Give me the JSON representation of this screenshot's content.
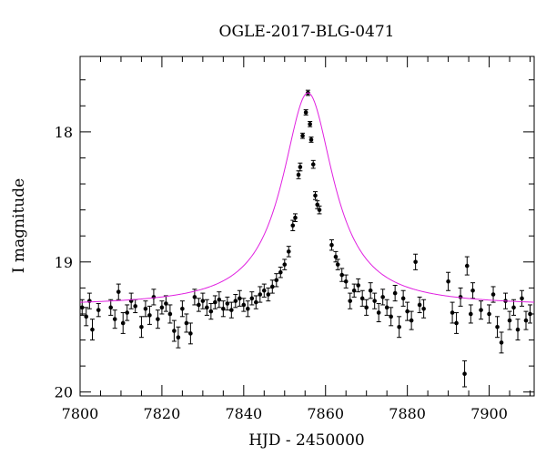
{
  "chart_data": {
    "type": "scatter",
    "title": "OGLE-2017-BLG-0471",
    "xlabel": "HJD - 2450000",
    "ylabel": "I magnitude",
    "xlim": [
      7800,
      7911
    ],
    "ylim": [
      20.03,
      17.42
    ],
    "y_inverted": true,
    "grid": false,
    "x_ticks": [
      {
        "value": 7800,
        "label": "7800"
      },
      {
        "value": 7820,
        "label": "7820"
      },
      {
        "value": 7840,
        "label": "7840"
      },
      {
        "value": 7860,
        "label": "7860"
      },
      {
        "value": 7880,
        "label": "7880"
      },
      {
        "value": 7900,
        "label": "7900"
      }
    ],
    "y_ticks": [
      {
        "value": 18,
        "label": "18"
      },
      {
        "value": 19,
        "label": "19"
      },
      {
        "value": 20,
        "label": "20"
      }
    ],
    "model": {
      "type": "point-lens microlensing fit",
      "t0": 7855.7,
      "baseline": 19.34,
      "peak": 17.7,
      "wing_width": 7.6,
      "color": "#e020e0"
    },
    "series": [
      {
        "marker_color": "#000000",
        "points": [
          {
            "x": 7800.5,
            "y": 19.35,
            "e": 0.06
          },
          {
            "x": 7801.5,
            "y": 19.42,
            "e": 0.07
          },
          {
            "x": 7802.3,
            "y": 19.3,
            "e": 0.06
          },
          {
            "x": 7803.0,
            "y": 19.52,
            "e": 0.08
          },
          {
            "x": 7804.5,
            "y": 19.37,
            "e": 0.05
          },
          {
            "x": 7807.5,
            "y": 19.35,
            "e": 0.06
          },
          {
            "x": 7808.5,
            "y": 19.44,
            "e": 0.07
          },
          {
            "x": 7809.4,
            "y": 19.23,
            "e": 0.06
          },
          {
            "x": 7810.5,
            "y": 19.47,
            "e": 0.08
          },
          {
            "x": 7811.5,
            "y": 19.39,
            "e": 0.06
          },
          {
            "x": 7812.5,
            "y": 19.3,
            "e": 0.06
          },
          {
            "x": 7813.5,
            "y": 19.34,
            "e": 0.05
          },
          {
            "x": 7815.0,
            "y": 19.5,
            "e": 0.08
          },
          {
            "x": 7816.0,
            "y": 19.36,
            "e": 0.06
          },
          {
            "x": 7817.0,
            "y": 19.41,
            "e": 0.07
          },
          {
            "x": 7818.0,
            "y": 19.27,
            "e": 0.06
          },
          {
            "x": 7819.0,
            "y": 19.44,
            "e": 0.07
          },
          {
            "x": 7820.0,
            "y": 19.35,
            "e": 0.05
          },
          {
            "x": 7821.0,
            "y": 19.32,
            "e": 0.06
          },
          {
            "x": 7822.0,
            "y": 19.4,
            "e": 0.07
          },
          {
            "x": 7823.0,
            "y": 19.53,
            "e": 0.08
          },
          {
            "x": 7824.0,
            "y": 19.58,
            "e": 0.08
          },
          {
            "x": 7825.0,
            "y": 19.36,
            "e": 0.06
          },
          {
            "x": 7826.0,
            "y": 19.47,
            "e": 0.07
          },
          {
            "x": 7827.0,
            "y": 19.55,
            "e": 0.08
          },
          {
            "x": 7828.0,
            "y": 19.27,
            "e": 0.06
          },
          {
            "x": 7829.0,
            "y": 19.33,
            "e": 0.05
          },
          {
            "x": 7830.0,
            "y": 19.3,
            "e": 0.06
          },
          {
            "x": 7831.0,
            "y": 19.35,
            "e": 0.06
          },
          {
            "x": 7832.0,
            "y": 19.38,
            "e": 0.06
          },
          {
            "x": 7833.0,
            "y": 19.31,
            "e": 0.05
          },
          {
            "x": 7834.0,
            "y": 19.29,
            "e": 0.06
          },
          {
            "x": 7835.0,
            "y": 19.36,
            "e": 0.06
          },
          {
            "x": 7836.0,
            "y": 19.32,
            "e": 0.05
          },
          {
            "x": 7837.0,
            "y": 19.37,
            "e": 0.06
          },
          {
            "x": 7838.0,
            "y": 19.3,
            "e": 0.05
          },
          {
            "x": 7839.0,
            "y": 19.28,
            "e": 0.06
          },
          {
            "x": 7840.0,
            "y": 19.33,
            "e": 0.05
          },
          {
            "x": 7841.0,
            "y": 19.36,
            "e": 0.06
          },
          {
            "x": 7842.0,
            "y": 19.28,
            "e": 0.05
          },
          {
            "x": 7843.0,
            "y": 19.31,
            "e": 0.05
          },
          {
            "x": 7844.0,
            "y": 19.25,
            "e": 0.06
          },
          {
            "x": 7845.0,
            "y": 19.22,
            "e": 0.05
          },
          {
            "x": 7846.0,
            "y": 19.25,
            "e": 0.05
          },
          {
            "x": 7847.0,
            "y": 19.19,
            "e": 0.05
          },
          {
            "x": 7848.0,
            "y": 19.14,
            "e": 0.05
          },
          {
            "x": 7849.0,
            "y": 19.08,
            "e": 0.04
          },
          {
            "x": 7850.0,
            "y": 19.02,
            "e": 0.04
          },
          {
            "x": 7851.0,
            "y": 18.92,
            "e": 0.04
          },
          {
            "x": 7852.0,
            "y": 18.72,
            "e": 0.04
          },
          {
            "x": 7852.6,
            "y": 18.66,
            "e": 0.03
          },
          {
            "x": 7853.4,
            "y": 18.33,
            "e": 0.03
          },
          {
            "x": 7853.8,
            "y": 18.27,
            "e": 0.03
          },
          {
            "x": 7854.4,
            "y": 18.03,
            "e": 0.02
          },
          {
            "x": 7855.2,
            "y": 17.85,
            "e": 0.02
          },
          {
            "x": 7855.7,
            "y": 17.7,
            "e": 0.02
          },
          {
            "x": 7856.2,
            "y": 17.94,
            "e": 0.02
          },
          {
            "x": 7856.5,
            "y": 18.06,
            "e": 0.02
          },
          {
            "x": 7857.0,
            "y": 18.25,
            "e": 0.03
          },
          {
            "x": 7857.5,
            "y": 18.49,
            "e": 0.03
          },
          {
            "x": 7858.0,
            "y": 18.56,
            "e": 0.03
          },
          {
            "x": 7858.5,
            "y": 18.6,
            "e": 0.03
          },
          {
            "x": 7861.5,
            "y": 18.87,
            "e": 0.04
          },
          {
            "x": 7862.5,
            "y": 18.96,
            "e": 0.04
          },
          {
            "x": 7863.0,
            "y": 19.02,
            "e": 0.04
          },
          {
            "x": 7864.0,
            "y": 19.1,
            "e": 0.05
          },
          {
            "x": 7865.0,
            "y": 19.15,
            "e": 0.05
          },
          {
            "x": 7866.0,
            "y": 19.3,
            "e": 0.06
          },
          {
            "x": 7867.0,
            "y": 19.22,
            "e": 0.05
          },
          {
            "x": 7868.0,
            "y": 19.18,
            "e": 0.05
          },
          {
            "x": 7869.0,
            "y": 19.28,
            "e": 0.06
          },
          {
            "x": 7870.0,
            "y": 19.35,
            "e": 0.06
          },
          {
            "x": 7871.0,
            "y": 19.22,
            "e": 0.06
          },
          {
            "x": 7872.0,
            "y": 19.3,
            "e": 0.06
          },
          {
            "x": 7873.0,
            "y": 19.39,
            "e": 0.07
          },
          {
            "x": 7874.0,
            "y": 19.27,
            "e": 0.06
          },
          {
            "x": 7875.0,
            "y": 19.35,
            "e": 0.06
          },
          {
            "x": 7876.0,
            "y": 19.42,
            "e": 0.07
          },
          {
            "x": 7877.0,
            "y": 19.24,
            "e": 0.06
          },
          {
            "x": 7878.0,
            "y": 19.5,
            "e": 0.08
          },
          {
            "x": 7879.0,
            "y": 19.28,
            "e": 0.06
          },
          {
            "x": 7880.0,
            "y": 19.38,
            "e": 0.07
          },
          {
            "x": 7881.0,
            "y": 19.45,
            "e": 0.07
          },
          {
            "x": 7882.0,
            "y": 19.0,
            "e": 0.06
          },
          {
            "x": 7883.0,
            "y": 19.33,
            "e": 0.06
          },
          {
            "x": 7884.0,
            "y": 19.36,
            "e": 0.07
          },
          {
            "x": 7890.0,
            "y": 19.15,
            "e": 0.07
          },
          {
            "x": 7891.0,
            "y": 19.39,
            "e": 0.08
          },
          {
            "x": 7892.0,
            "y": 19.47,
            "e": 0.08
          },
          {
            "x": 7893.0,
            "y": 19.27,
            "e": 0.07
          },
          {
            "x": 7894.0,
            "y": 19.86,
            "e": 0.1
          },
          {
            "x": 7894.6,
            "y": 19.03,
            "e": 0.07
          },
          {
            "x": 7895.5,
            "y": 19.4,
            "e": 0.07
          },
          {
            "x": 7896.0,
            "y": 19.22,
            "e": 0.06
          },
          {
            "x": 7898.0,
            "y": 19.37,
            "e": 0.07
          },
          {
            "x": 7900.0,
            "y": 19.4,
            "e": 0.07
          },
          {
            "x": 7901.0,
            "y": 19.25,
            "e": 0.06
          },
          {
            "x": 7902.0,
            "y": 19.5,
            "e": 0.08
          },
          {
            "x": 7903.0,
            "y": 19.62,
            "e": 0.08
          },
          {
            "x": 7904.0,
            "y": 19.3,
            "e": 0.06
          },
          {
            "x": 7905.0,
            "y": 19.45,
            "e": 0.07
          },
          {
            "x": 7906.0,
            "y": 19.35,
            "e": 0.06
          },
          {
            "x": 7907.0,
            "y": 19.52,
            "e": 0.08
          },
          {
            "x": 7908.0,
            "y": 19.28,
            "e": 0.06
          },
          {
            "x": 7909.0,
            "y": 19.45,
            "e": 0.07
          },
          {
            "x": 7910.0,
            "y": 19.4,
            "e": 0.07
          }
        ]
      }
    ]
  }
}
